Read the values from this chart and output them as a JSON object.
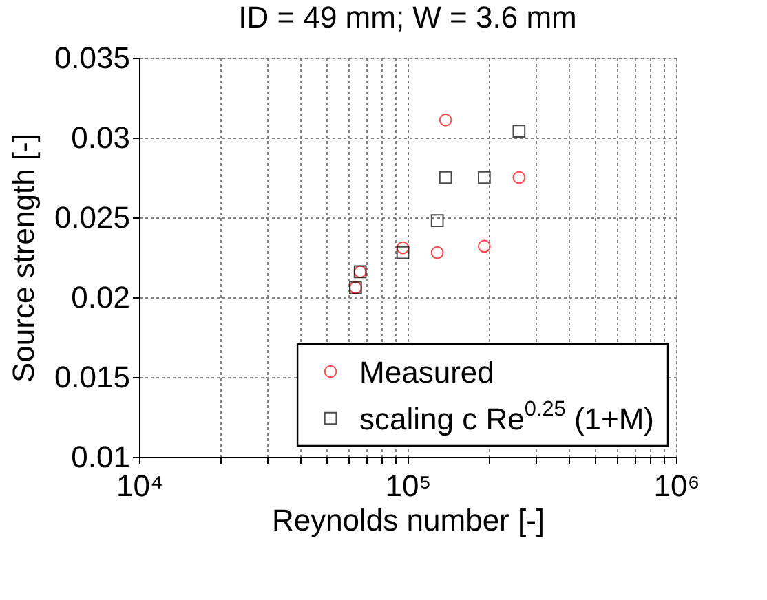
{
  "chart_data": {
    "type": "scatter",
    "title": "ID = 49 mm; W = 3.6 mm",
    "xlabel": "Reynolds number [-]",
    "ylabel": "Source strength [-]",
    "log": "x",
    "grid": true,
    "legend": "bottom right",
    "xlim": [
      10000,
      1000000
    ],
    "xticks": [
      {
        "value": 10000,
        "label": "10⁴"
      },
      {
        "value": 20000,
        "label": null
      },
      {
        "value": 30000,
        "label": null
      },
      {
        "value": 40000,
        "label": null
      },
      {
        "value": 50000,
        "label": null
      },
      {
        "value": 60000,
        "label": null
      },
      {
        "value": 70000,
        "label": null
      },
      {
        "value": 80000,
        "label": null
      },
      {
        "value": 90000,
        "label": null
      },
      {
        "value": 100000,
        "label": "10⁵"
      },
      {
        "value": 200000,
        "label": null
      },
      {
        "value": 300000,
        "label": null
      },
      {
        "value": 400000,
        "label": null
      },
      {
        "value": 500000,
        "label": null
      },
      {
        "value": 600000,
        "label": null
      },
      {
        "value": 700000,
        "label": null
      },
      {
        "value": 800000,
        "label": null
      },
      {
        "value": 900000,
        "label": null
      },
      {
        "value": 1000000,
        "label": "10⁶"
      }
    ],
    "ylim": [
      0.01,
      0.035
    ],
    "yticks": [
      0.01,
      0.015,
      0.02,
      0.025,
      0.03,
      0.035
    ],
    "series": [
      {
        "name": "Measured",
        "color": "#ff0000",
        "marker": "circle",
        "x": [
          64000,
          66600,
          96000,
          129000,
          138500,
          193000,
          260000
        ],
        "values": [
          0.0206,
          0.0216,
          0.0231,
          0.0228,
          0.0311,
          0.0232,
          0.0275
        ]
      },
      {
        "name": "scaling c Re$^{0.25}$ (1+M)",
        "color": "#000000",
        "marker": "square",
        "x": [
          64000,
          66600,
          96000,
          129000,
          138500,
          193000,
          260000
        ],
        "values": [
          0.0206,
          0.0216,
          0.0228,
          0.0248,
          0.0275,
          0.0275,
          0.0304
        ]
      }
    ]
  }
}
